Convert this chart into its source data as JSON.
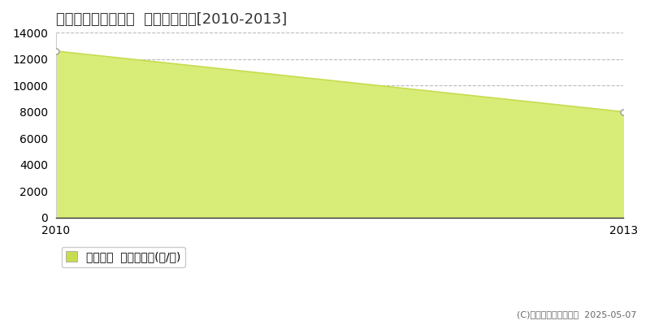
{
  "title": "足柄上郡開成町宮台  農地価格推移[2010-2013]",
  "x_values": [
    2010,
    2013
  ],
  "y_values": [
    12600,
    8000
  ],
  "y_min": 0,
  "y_max": 14000,
  "y_ticks": [
    0,
    2000,
    4000,
    6000,
    8000,
    10000,
    12000,
    14000
  ],
  "x_ticks": [
    2010,
    2013
  ],
  "line_color": "#c8dc50",
  "fill_color": "#d8ec78",
  "fill_alpha": 1.0,
  "marker_edge_color": "#999999",
  "grid_color": "#bbbbbb",
  "background_color": "#ffffff",
  "plot_bg_color": "#ffffff",
  "legend_label": "農地価格  平均坪単価(円/坪)",
  "legend_marker_color": "#c8dc50",
  "copyright_text": "(C)土地価格ドットコム  2025-05-07",
  "title_fontsize": 13,
  "tick_fontsize": 10,
  "legend_fontsize": 10,
  "copyright_fontsize": 8
}
